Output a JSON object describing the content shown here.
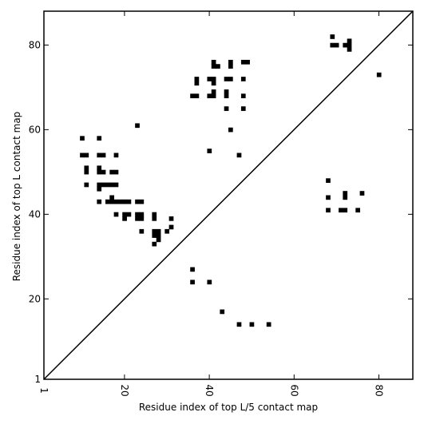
{
  "chart_data": {
    "type": "scatter",
    "title": "",
    "xlabel": "Residue index of top L/5 contact map",
    "ylabel": "Residue index of top L contact map",
    "xlim": [
      1,
      88
    ],
    "ylim": [
      1,
      88
    ],
    "x_ticks": [
      1,
      20,
      40,
      60,
      80
    ],
    "y_ticks": [
      1,
      20,
      40,
      60,
      80
    ],
    "x_tick_labels": [
      "1",
      "20",
      "40",
      "60",
      "80"
    ],
    "y_tick_labels": [
      "1",
      "20",
      "40",
      "60",
      "80"
    ],
    "grid": false,
    "marker": "square",
    "marker_color": "#000000",
    "diagonal": {
      "from": [
        1,
        1
      ],
      "to": [
        88,
        88
      ],
      "color": "#000000"
    },
    "series": [
      {
        "values": [
          [
            10,
            58
          ],
          [
            14,
            58
          ],
          [
            23,
            61
          ],
          [
            10,
            54
          ],
          [
            11,
            54
          ],
          [
            14,
            54
          ],
          [
            15,
            54
          ],
          [
            18,
            54
          ],
          [
            11,
            51
          ],
          [
            14,
            51
          ],
          [
            11,
            50
          ],
          [
            14,
            50
          ],
          [
            15,
            50
          ],
          [
            17,
            50
          ],
          [
            18,
            50
          ],
          [
            11,
            47
          ],
          [
            14,
            47
          ],
          [
            15,
            47
          ],
          [
            16,
            47
          ],
          [
            17,
            47
          ],
          [
            18,
            47
          ],
          [
            14,
            46
          ],
          [
            17,
            44
          ],
          [
            14,
            43
          ],
          [
            16,
            43
          ],
          [
            17,
            43
          ],
          [
            18,
            43
          ],
          [
            19,
            43
          ],
          [
            20,
            43
          ],
          [
            21,
            43
          ],
          [
            23,
            43
          ],
          [
            24,
            43
          ],
          [
            18,
            40
          ],
          [
            20,
            40
          ],
          [
            21,
            40
          ],
          [
            23,
            40
          ],
          [
            24,
            40
          ],
          [
            27,
            40
          ],
          [
            20,
            39
          ],
          [
            23,
            39
          ],
          [
            24,
            39
          ],
          [
            27,
            39
          ],
          [
            31,
            39
          ],
          [
            31,
            37
          ],
          [
            24,
            36
          ],
          [
            27,
            36
          ],
          [
            28,
            36
          ],
          [
            30,
            36
          ],
          [
            27,
            35
          ],
          [
            28,
            35
          ],
          [
            28,
            34
          ],
          [
            27,
            33
          ],
          [
            36,
            27
          ],
          [
            36,
            24
          ],
          [
            40,
            24
          ],
          [
            43,
            17
          ],
          [
            47,
            14
          ],
          [
            50,
            14
          ],
          [
            54,
            14
          ],
          [
            41,
            76
          ],
          [
            45,
            76
          ],
          [
            48,
            76
          ],
          [
            49,
            76
          ],
          [
            41,
            75
          ],
          [
            42,
            75
          ],
          [
            45,
            75
          ],
          [
            37,
            72
          ],
          [
            40,
            72
          ],
          [
            41,
            72
          ],
          [
            44,
            72
          ],
          [
            45,
            72
          ],
          [
            48,
            72
          ],
          [
            37,
            71
          ],
          [
            41,
            71
          ],
          [
            41,
            69
          ],
          [
            44,
            69
          ],
          [
            36,
            68
          ],
          [
            37,
            68
          ],
          [
            40,
            68
          ],
          [
            41,
            68
          ],
          [
            44,
            68
          ],
          [
            48,
            68
          ],
          [
            44,
            65
          ],
          [
            48,
            65
          ],
          [
            45,
            60
          ],
          [
            40,
            55
          ],
          [
            47,
            54
          ],
          [
            69,
            82
          ],
          [
            73,
            81
          ],
          [
            69,
            80
          ],
          [
            70,
            80
          ],
          [
            72,
            80
          ],
          [
            73,
            80
          ],
          [
            73,
            79
          ],
          [
            80,
            73
          ],
          [
            68,
            48
          ],
          [
            72,
            45
          ],
          [
            76,
            45
          ],
          [
            68,
            44
          ],
          [
            72,
            44
          ],
          [
            68,
            41
          ],
          [
            71,
            41
          ],
          [
            72,
            41
          ],
          [
            75,
            41
          ]
        ]
      }
    ]
  }
}
